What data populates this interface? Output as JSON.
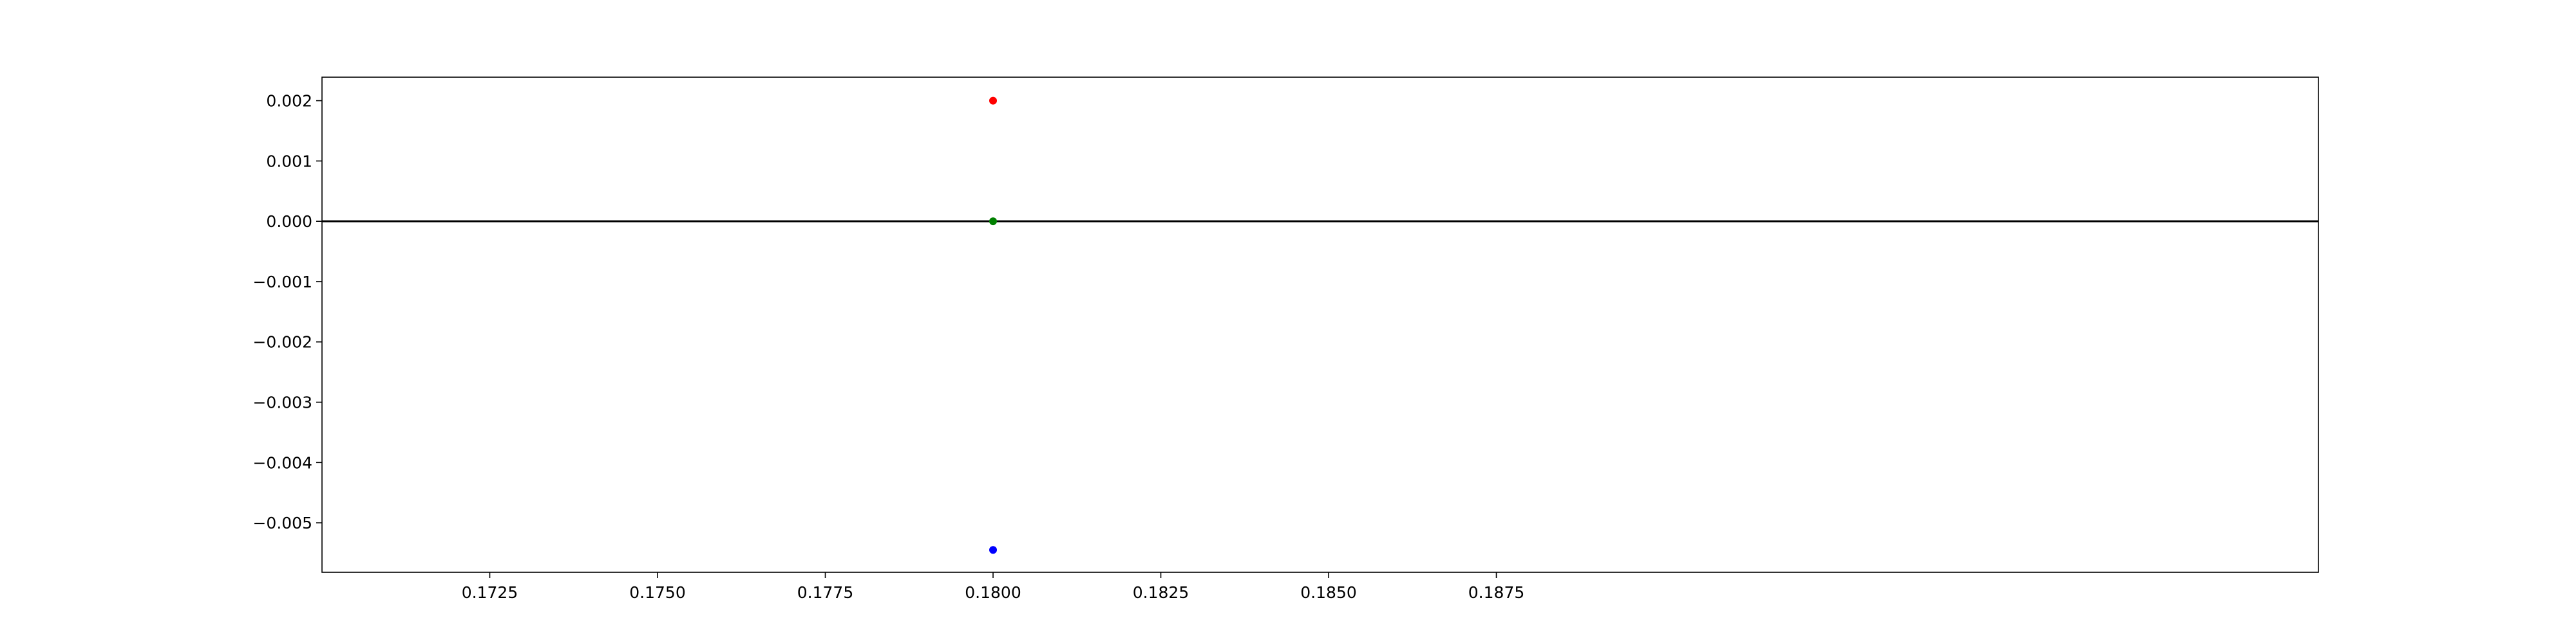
{
  "chart_data": {
    "type": "scatter",
    "title": "",
    "xlabel": "",
    "ylabel": "",
    "xlim": [
      0.17,
      0.19975
    ],
    "ylim": [
      -0.00582,
      0.00239
    ],
    "x_ticks": [
      0.1725,
      0.175,
      0.1775,
      0.18,
      0.1825,
      0.185,
      0.1875
    ],
    "x_tick_labels": [
      "0.1725",
      "0.1750",
      "0.1775",
      "0.1800",
      "0.1825",
      "0.1850",
      "0.1875"
    ],
    "y_ticks": [
      0.002,
      0.001,
      0.0,
      -0.001,
      -0.002,
      -0.003,
      -0.004,
      -0.005
    ],
    "y_tick_labels": [
      "0.002",
      "0.001",
      "0.000",
      "−0.001",
      "−0.002",
      "−0.003",
      "−0.004",
      "−0.005"
    ],
    "grid": false,
    "reference_line": {
      "y": 0.0,
      "color": "#000000"
    },
    "points": [
      {
        "x": 0.18,
        "y": 0.002,
        "color": "#ff0000"
      },
      {
        "x": 0.18,
        "y": 0.0,
        "color": "#008000"
      },
      {
        "x": 0.18,
        "y": -0.00545,
        "color": "#0000ff"
      }
    ]
  }
}
